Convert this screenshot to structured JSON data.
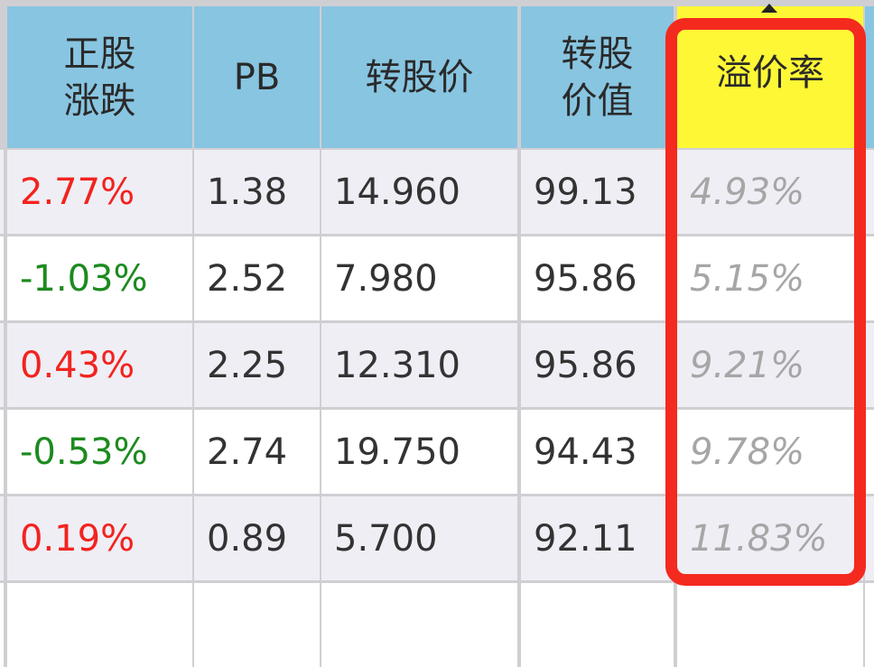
{
  "columns": [
    {
      "label": "正股\n涨跌",
      "line1": "正股",
      "line2": "涨跌"
    },
    {
      "label": "PB"
    },
    {
      "label": "转股价"
    },
    {
      "label": "转股\n价值",
      "line1": "转股",
      "line2": "价值"
    },
    {
      "label": "溢价率",
      "highlighted": true,
      "sort": "sort-asc-icon"
    }
  ],
  "rows": [
    {
      "change": "2.77%",
      "direction": "up",
      "pb": "1.38",
      "conv_price": "14.960",
      "conv_value": "99.13",
      "premium": "4.93%"
    },
    {
      "change": "-1.03%",
      "direction": "down",
      "pb": "2.52",
      "conv_price": "7.980",
      "conv_value": "95.86",
      "premium": "5.15%"
    },
    {
      "change": "0.43%",
      "direction": "up",
      "pb": "2.25",
      "conv_price": "12.310",
      "conv_value": "95.86",
      "premium": "9.21%"
    },
    {
      "change": "-0.53%",
      "direction": "down",
      "pb": "2.74",
      "conv_price": "19.750",
      "conv_value": "94.43",
      "premium": "9.78%"
    },
    {
      "change": "0.19%",
      "direction": "up",
      "pb": "0.89",
      "conv_price": "5.700",
      "conv_value": "92.11",
      "premium": "11.83%"
    }
  ],
  "colors": {
    "header": "#88c5e1",
    "highlight_header": "#fdf735",
    "up": "#f2231f",
    "down": "#1d8a1f",
    "annotation": "#f42a1f"
  }
}
